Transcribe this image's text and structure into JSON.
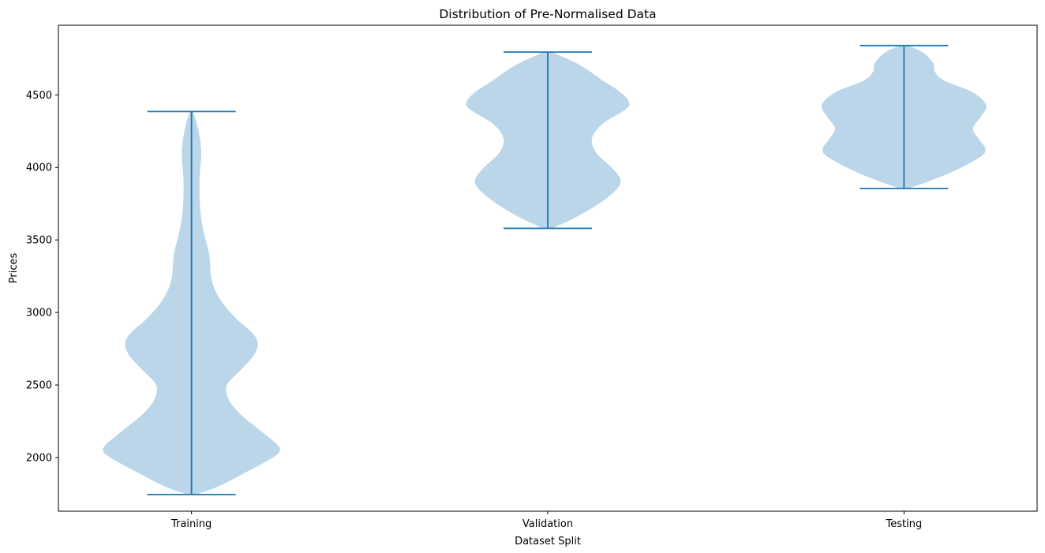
{
  "chart_data": {
    "type": "violin",
    "title": "Distribution of Pre-Normalised Data",
    "xlabel": "Dataset Split",
    "ylabel": "Prices",
    "categories": [
      "Training",
      "Validation",
      "Testing"
    ],
    "ylim": [
      1630,
      4980
    ],
    "yticks": [
      2000,
      2500,
      3000,
      3500,
      4000,
      4500
    ],
    "grid": false,
    "colors": {
      "body": "#bad6e8",
      "lines": "#1f77b4",
      "axes": "#000000"
    },
    "series": [
      {
        "category": "Training",
        "min": 1745,
        "max": 4385,
        "profile": [
          [
            1745,
            0.05
          ],
          [
            1800,
            0.3
          ],
          [
            1900,
            0.62
          ],
          [
            2000,
            0.92
          ],
          [
            2050,
            1.0
          ],
          [
            2100,
            0.95
          ],
          [
            2200,
            0.75
          ],
          [
            2300,
            0.55
          ],
          [
            2400,
            0.42
          ],
          [
            2500,
            0.4
          ],
          [
            2600,
            0.55
          ],
          [
            2700,
            0.7
          ],
          [
            2780,
            0.75
          ],
          [
            2850,
            0.7
          ],
          [
            2950,
            0.52
          ],
          [
            3050,
            0.37
          ],
          [
            3150,
            0.27
          ],
          [
            3250,
            0.22
          ],
          [
            3400,
            0.2
          ],
          [
            3550,
            0.14
          ],
          [
            3700,
            0.1
          ],
          [
            3900,
            0.09
          ],
          [
            4100,
            0.11
          ],
          [
            4250,
            0.08
          ],
          [
            4385,
            0.02
          ]
        ]
      },
      {
        "category": "Validation",
        "min": 3580,
        "max": 4795,
        "profile": [
          [
            3580,
            0.05
          ],
          [
            3650,
            0.3
          ],
          [
            3750,
            0.58
          ],
          [
            3850,
            0.78
          ],
          [
            3920,
            0.82
          ],
          [
            4000,
            0.72
          ],
          [
            4100,
            0.55
          ],
          [
            4200,
            0.5
          ],
          [
            4300,
            0.62
          ],
          [
            4400,
            0.88
          ],
          [
            4450,
            0.92
          ],
          [
            4520,
            0.82
          ],
          [
            4600,
            0.62
          ],
          [
            4700,
            0.38
          ],
          [
            4795,
            0.05
          ]
        ]
      },
      {
        "category": "Testing",
        "min": 3855,
        "max": 4840,
        "profile": [
          [
            3855,
            0.05
          ],
          [
            3920,
            0.35
          ],
          [
            4000,
            0.65
          ],
          [
            4080,
            0.88
          ],
          [
            4130,
            0.92
          ],
          [
            4200,
            0.84
          ],
          [
            4270,
            0.78
          ],
          [
            4350,
            0.87
          ],
          [
            4430,
            0.93
          ],
          [
            4520,
            0.77
          ],
          [
            4600,
            0.45
          ],
          [
            4660,
            0.35
          ],
          [
            4720,
            0.33
          ],
          [
            4790,
            0.22
          ],
          [
            4840,
            0.05
          ]
        ]
      }
    ]
  }
}
